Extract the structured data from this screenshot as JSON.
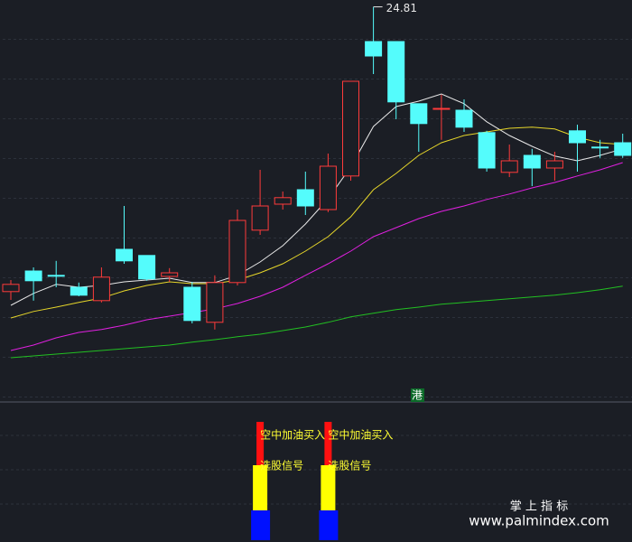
{
  "chart_data": {
    "type": "candlestick",
    "up_color": "#ff3b3b",
    "down_color": "#54fcfc",
    "ylim": [
      13.875,
      25
    ],
    "open": [
      16.93,
      17.5,
      17.38,
      17.05,
      16.68,
      18.1,
      17.93,
      17.35,
      17.05,
      16.08,
      17.18,
      18.63,
      19.35,
      19.75,
      19.2,
      20.13,
      23.85,
      23.85,
      22.13,
      21.98,
      21.95,
      21.33,
      20.23,
      20.7,
      20.35,
      21.38,
      20.93,
      21.05
    ],
    "high": [
      17.25,
      17.6,
      17.78,
      17.18,
      17.6,
      19.3,
      17.93,
      17.58,
      17.2,
      17.38,
      19.2,
      20.3,
      19.7,
      20.25,
      20.75,
      22.75,
      24.81,
      23.85,
      22.13,
      22.38,
      22.25,
      21.38,
      21.0,
      20.88,
      20.8,
      21.55,
      21.13,
      21.3
    ],
    "low": [
      16.7,
      16.68,
      17.05,
      16.8,
      16.63,
      17.7,
      17.23,
      17.2,
      16.05,
      15.88,
      17.1,
      18.5,
      19.2,
      19.05,
      19.13,
      20.0,
      22.95,
      21.7,
      20.8,
      21.13,
      21.35,
      20.25,
      20.1,
      19.85,
      20.0,
      20.25,
      20.63,
      20.63
    ],
    "close": [
      17.13,
      17.23,
      17.37,
      16.83,
      17.33,
      17.78,
      17.28,
      17.45,
      16.13,
      17.18,
      18.9,
      19.3,
      19.53,
      19.3,
      20.4,
      22.75,
      23.45,
      22.18,
      21.58,
      22.0,
      21.48,
      20.35,
      20.55,
      20.35,
      20.55,
      21.05,
      20.92,
      20.7
    ],
    "high_label_index": 16,
    "series": [
      {
        "color": "#e8e8e8",
        "values": [
          16.55,
          16.88,
          17.13,
          17.05,
          17.1,
          17.2,
          17.25,
          17.3,
          17.18,
          17.18,
          17.38,
          17.75,
          18.2,
          18.8,
          19.5,
          20.38,
          21.5,
          22.05,
          22.2,
          22.4,
          22.13,
          21.63,
          21.25,
          20.95,
          20.68,
          20.55,
          20.7,
          20.88
        ]
      },
      {
        "color": "#e6d62a",
        "values": [
          16.2,
          16.38,
          16.5,
          16.63,
          16.75,
          16.95,
          17.1,
          17.2,
          17.15,
          17.15,
          17.25,
          17.45,
          17.7,
          18.05,
          18.45,
          19.0,
          19.75,
          20.2,
          20.7,
          21.05,
          21.25,
          21.35,
          21.45,
          21.48,
          21.43,
          21.2,
          21.05,
          21.0
        ]
      },
      {
        "color": "#e020e0",
        "values": [
          15.3,
          15.45,
          15.65,
          15.8,
          15.88,
          16.0,
          16.15,
          16.25,
          16.35,
          16.45,
          16.6,
          16.8,
          17.05,
          17.38,
          17.7,
          18.05,
          18.45,
          18.7,
          18.95,
          19.15,
          19.3,
          19.48,
          19.63,
          19.8,
          19.95,
          20.13,
          20.3,
          20.5
        ]
      },
      {
        "color": "#22c022",
        "values": [
          15.1,
          15.15,
          15.2,
          15.25,
          15.3,
          15.35,
          15.4,
          15.45,
          15.53,
          15.6,
          15.68,
          15.75,
          15.85,
          15.95,
          16.08,
          16.23,
          16.33,
          16.43,
          16.5,
          16.58,
          16.63,
          16.68,
          16.73,
          16.78,
          16.83,
          16.9,
          16.98,
          17.08
        ]
      }
    ],
    "signal_labels": [
      null,
      null,
      null,
      null,
      null,
      null,
      null,
      null,
      null,
      null,
      null,
      [
        "空中加油买入",
        "选股信号"
      ],
      null,
      null,
      [
        "空中加油买入",
        "选股信号"
      ],
      null,
      null,
      null,
      null,
      null,
      null,
      null,
      null,
      null,
      null,
      null,
      null,
      null
    ],
    "badge": "港",
    "watermark": {
      "title": "掌 上 指 标",
      "url": "www.palmindex.com"
    }
  }
}
